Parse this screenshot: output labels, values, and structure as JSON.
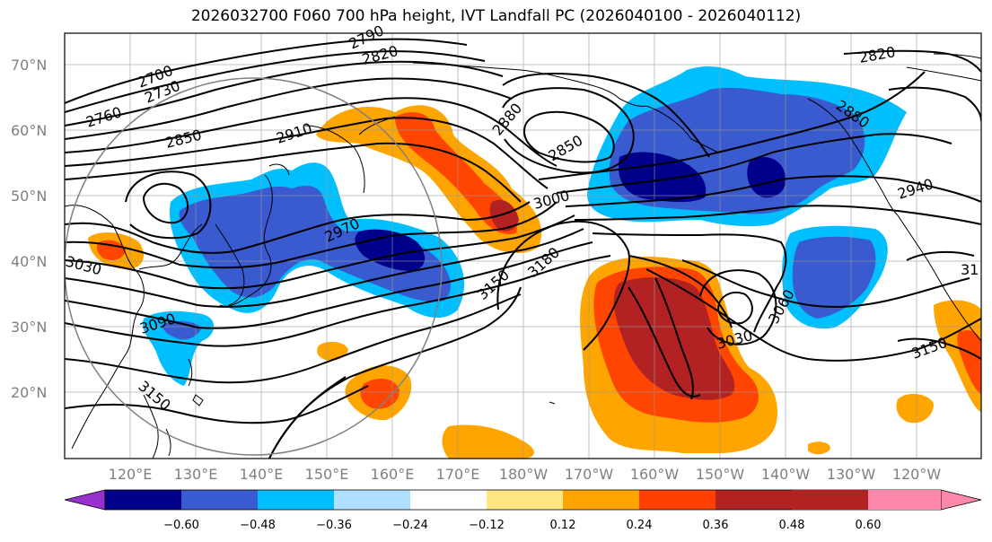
{
  "title": "2026032700 F060 700 hPa height, IVT Landfall PC (2026040100 - 2026040112)",
  "lat_labels": [
    "70°N",
    "60°N",
    "50°N",
    "40°N",
    "30°N",
    "20°N"
  ],
  "lon_labels": [
    "120°E",
    "130°E",
    "140°E",
    "150°E",
    "160°E",
    "170°E",
    "180°W",
    "170°W",
    "160°W",
    "150°W",
    "140°W",
    "130°W",
    "120°W"
  ],
  "contour_labels": [
    "2700",
    "2730",
    "2760",
    "2820",
    "2790",
    "2850",
    "2910",
    "2880",
    "2850",
    "3000",
    "2970",
    "3030",
    "3090",
    "3150",
    "3150",
    "3180",
    "3030",
    "3060",
    "2880",
    "2940",
    "2820",
    "3150",
    "31"
  ],
  "colorbar": {
    "ticks": [
      "−0.60",
      "−0.48",
      "−0.36",
      "−0.24",
      "−0.12",
      "0.12",
      "0.24",
      "0.36",
      "0.48",
      "0.60"
    ],
    "colors": [
      "#9932cc",
      "#00008b",
      "#3a5ad0",
      "#00bfff",
      "#b0e0ff",
      "#ffffff",
      "#ffe680",
      "#ffa500",
      "#ff4000",
      "#b22222",
      "#ff88aa"
    ]
  },
  "colors": {
    "dark_blue": "#00008b",
    "mid_blue": "#3a5ad0",
    "light_blue": "#00bfff",
    "orange": "#ffa500",
    "red_orange": "#ff4500",
    "dark_red": "#b22222"
  }
}
